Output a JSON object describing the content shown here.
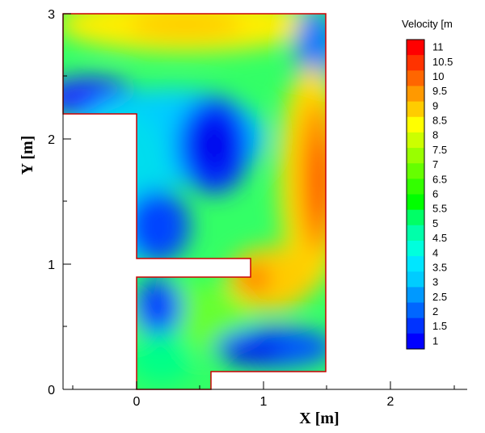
{
  "chart_data": {
    "type": "heatmap",
    "xlabel": "X [m]",
    "ylabel": "Y [m]",
    "x_ticks": [
      "0",
      "1",
      "2"
    ],
    "y_ticks": [
      "0",
      "1",
      "2",
      "3"
    ],
    "xlim": [
      -0.58,
      2.6
    ],
    "ylim": [
      0,
      3
    ],
    "legend": {
      "title": "Velocity [m",
      "levels": [
        "11",
        "10.5",
        "10",
        "9.5",
        "9",
        "8.5",
        "8",
        "7.5",
        "7",
        "6.5",
        "6",
        "5.5",
        "5",
        "4.5",
        "4",
        "3.5",
        "3",
        "2.5",
        "2",
        "1.5",
        "1"
      ],
      "colors": [
        "#ff0000",
        "#ff3300",
        "#ff6600",
        "#ff9900",
        "#ffcc00",
        "#ffff00",
        "#ccff00",
        "#99ff00",
        "#66ff00",
        "#33ff00",
        "#00ff00",
        "#00ff66",
        "#00ffaa",
        "#00ffdd",
        "#00e6ff",
        "#00ccff",
        "#0099ff",
        "#0066ff",
        "#0033ff",
        "#0000ff"
      ],
      "placement": "right"
    },
    "domain_outline": [
      [
        0,
        0.15
      ],
      [
        0,
        0.9
      ],
      [
        0.9,
        0.9
      ],
      [
        0.9,
        1.05
      ],
      [
        0,
        1.05
      ],
      [
        0,
        2.2
      ],
      [
        -0.58,
        2.2
      ],
      [
        -0.58,
        3
      ],
      [
        1.5,
        3
      ],
      [
        1.5,
        0.15
      ],
      [
        0.6,
        0.15
      ],
      [
        0.6,
        0
      ],
      [
        0,
        0
      ]
    ],
    "field_description": "velocity magnitude contour; peaks ~10-11 at right wall near y=1.6 and near x=0.9,y=0.9; low ~1 in vortex near x=0.6,y=1.9"
  }
}
